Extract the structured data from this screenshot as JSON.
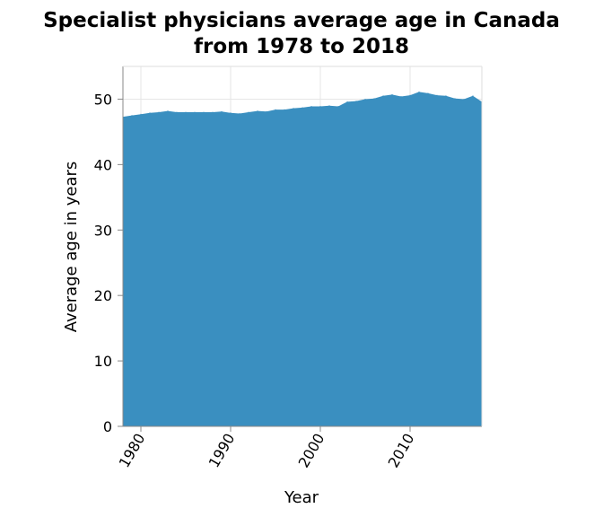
{
  "chart_data": {
    "type": "area",
    "title": "Specialist physicians average age in Canada from 1978 to 2018",
    "title_lines": [
      "Specialist physicians average age in Canada",
      "from 1978 to 2018"
    ],
    "xlabel": "Year",
    "ylabel": "Average age in years",
    "xlim": [
      1978,
      2018
    ],
    "ylim": [
      0,
      55
    ],
    "x_ticks": [
      1980,
      1990,
      2000,
      2010
    ],
    "y_ticks": [
      0,
      10,
      20,
      30,
      40,
      50
    ],
    "grid": true,
    "legend": "none",
    "fill_color": "#3a8fc0",
    "x": [
      1978,
      1979,
      1980,
      1981,
      1982,
      1983,
      1984,
      1985,
      1986,
      1987,
      1988,
      1989,
      1990,
      1991,
      1992,
      1993,
      1994,
      1995,
      1996,
      1997,
      1998,
      1999,
      2000,
      2001,
      2002,
      2003,
      2004,
      2005,
      2006,
      2007,
      2008,
      2009,
      2010,
      2011,
      2012,
      2013,
      2014,
      2015,
      2016,
      2017,
      2018
    ],
    "values": [
      47.3,
      47.5,
      47.7,
      47.9,
      48.0,
      48.2,
      48.0,
      48.0,
      48.0,
      48.0,
      48.0,
      48.1,
      47.9,
      47.8,
      48.0,
      48.2,
      48.1,
      48.4,
      48.4,
      48.6,
      48.7,
      48.9,
      48.9,
      49.0,
      48.9,
      49.6,
      49.7,
      50.0,
      50.1,
      50.5,
      50.7,
      50.4,
      50.6,
      51.1,
      50.9,
      50.6,
      50.5,
      50.1,
      50.0,
      50.5,
      49.6
    ]
  }
}
